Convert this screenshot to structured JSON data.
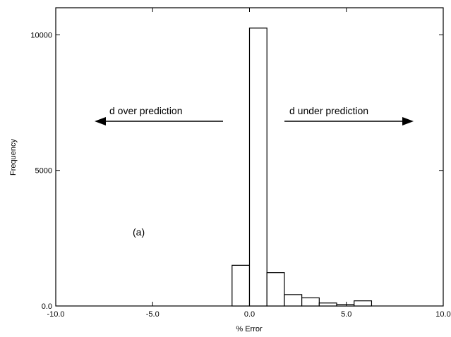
{
  "chart_data": {
    "type": "bar",
    "title": "",
    "xlabel": "% Error",
    "ylabel": "Frequency",
    "xlim": [
      -10.0,
      10.0
    ],
    "ylim": [
      0,
      11000
    ],
    "bin_width": 0.9,
    "x_ticks": [
      {
        "value": -10.0,
        "label": "-10.0"
      },
      {
        "value": -5.0,
        "label": "-5.0"
      },
      {
        "value": 0.0,
        "label": "0.0"
      },
      {
        "value": 5.0,
        "label": "5.0"
      },
      {
        "value": 10.0,
        "label": "10.0"
      }
    ],
    "y_ticks": [
      {
        "value": 0,
        "label": "0.0"
      },
      {
        "value": 5000,
        "label": "5000"
      },
      {
        "value": 10000,
        "label": "10000"
      }
    ],
    "bins": [
      {
        "x": -0.9,
        "value": 1500
      },
      {
        "x": 0.0,
        "value": 10250
      },
      {
        "x": 0.9,
        "value": 1230
      },
      {
        "x": 1.8,
        "value": 420
      },
      {
        "x": 2.7,
        "value": 300
      },
      {
        "x": 3.6,
        "value": 110
      },
      {
        "x": 4.5,
        "value": 60
      },
      {
        "x": 5.4,
        "value": 190
      }
    ],
    "annotations": {
      "left_arrow_label": "d over prediction",
      "right_arrow_label": "d under prediction",
      "panel_label": "(a)"
    },
    "grid": false
  }
}
